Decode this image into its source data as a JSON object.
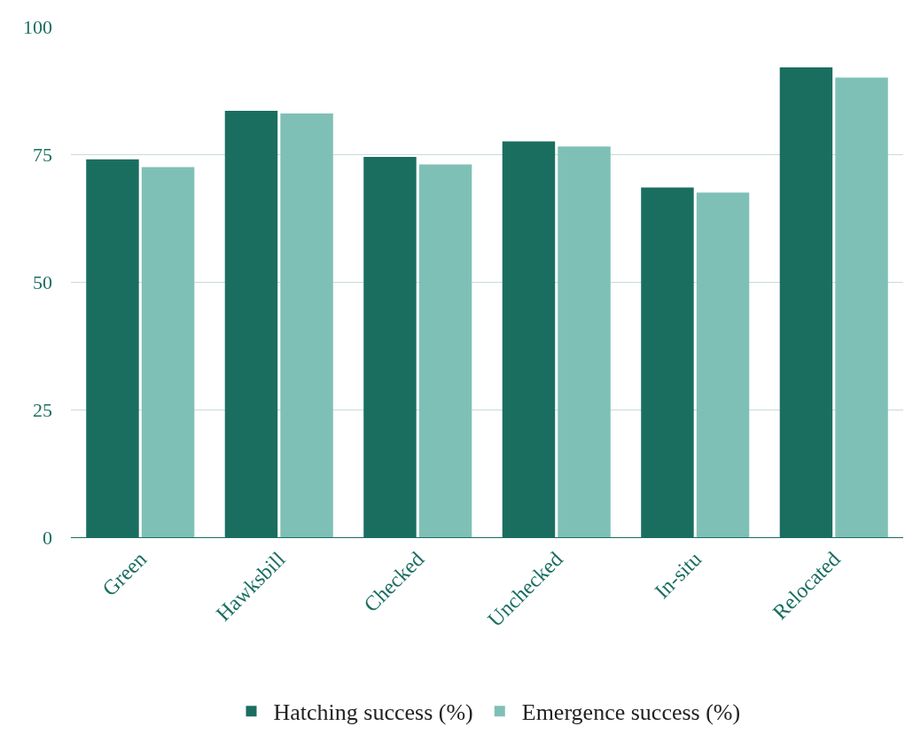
{
  "chart_data": {
    "type": "bar",
    "categories": [
      "Green",
      "Hawksbill",
      "Checked",
      "Unchecked",
      "In-situ",
      "Relocated"
    ],
    "series": [
      {
        "name": "Hatching success (%)",
        "color": "#1a6e60",
        "values": [
          74,
          83.5,
          74.5,
          77.5,
          68.5,
          92
        ]
      },
      {
        "name": "Emergence success (%)",
        "color": "#7fc0b6",
        "values": [
          72.5,
          83,
          73,
          76.5,
          67.5,
          90
        ]
      }
    ],
    "ylim": [
      0,
      100
    ],
    "yticks": [
      0,
      25,
      50,
      75,
      100
    ],
    "grid": "y",
    "legend": "bottom"
  }
}
